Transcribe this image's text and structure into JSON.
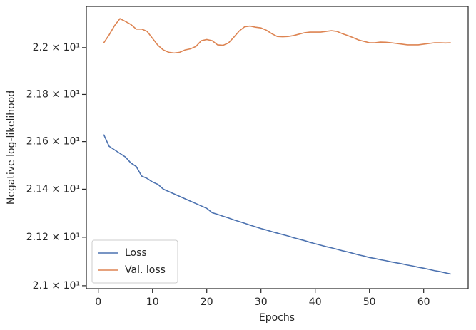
{
  "chart_data": {
    "type": "line",
    "xlabel": "Epochs",
    "ylabel": "Negative log-likelihood",
    "x": [
      1,
      2,
      3,
      4,
      5,
      6,
      7,
      8,
      9,
      10,
      11,
      12,
      13,
      14,
      15,
      16,
      17,
      18,
      19,
      20,
      21,
      22,
      23,
      24,
      25,
      26,
      27,
      28,
      29,
      30,
      31,
      32,
      33,
      34,
      35,
      36,
      37,
      38,
      39,
      40,
      41,
      42,
      43,
      44,
      45,
      46,
      47,
      48,
      49,
      50,
      51,
      52,
      53,
      54,
      55,
      56,
      57,
      58,
      59,
      60,
      61,
      62,
      63,
      64,
      65
    ],
    "series": [
      {
        "name": "Loss",
        "color": "#4c72b0",
        "values": [
          21.63,
          21.58,
          21.565,
          21.55,
          21.535,
          21.51,
          21.495,
          21.455,
          21.445,
          21.43,
          21.42,
          21.4,
          21.39,
          21.38,
          21.37,
          21.36,
          21.35,
          21.34,
          21.33,
          21.32,
          21.302,
          21.295,
          21.287,
          21.28,
          21.272,
          21.265,
          21.258,
          21.25,
          21.243,
          21.236,
          21.23,
          21.223,
          21.217,
          21.211,
          21.205,
          21.198,
          21.192,
          21.186,
          21.179,
          21.173,
          21.167,
          21.161,
          21.156,
          21.15,
          21.144,
          21.139,
          21.133,
          21.127,
          21.122,
          21.116,
          21.112,
          21.107,
          21.103,
          21.098,
          21.094,
          21.09,
          21.085,
          21.081,
          21.076,
          21.072,
          21.067,
          21.062,
          21.058,
          21.053,
          21.048
        ]
      },
      {
        "name": "Val. loss",
        "color": "#dd8452",
        "values": [
          22.02,
          22.055,
          22.095,
          22.125,
          22.113,
          22.1,
          22.08,
          22.08,
          22.07,
          22.04,
          22.01,
          21.99,
          21.98,
          21.977,
          21.98,
          21.99,
          21.995,
          22.005,
          22.03,
          22.035,
          22.03,
          22.012,
          22.01,
          22.02,
          22.045,
          22.072,
          22.09,
          22.093,
          22.088,
          22.085,
          22.075,
          22.06,
          22.048,
          22.047,
          22.048,
          22.052,
          22.058,
          22.064,
          22.067,
          22.067,
          22.067,
          22.07,
          22.073,
          22.07,
          22.06,
          22.052,
          22.043,
          22.033,
          22.027,
          22.021,
          22.021,
          22.024,
          22.023,
          22.021,
          22.018,
          22.015,
          22.012,
          22.012,
          22.012,
          22.015,
          22.018,
          22.021,
          22.021,
          22.02,
          22.021
        ]
      }
    ],
    "xlim": [
      -2.2,
      68.2
    ],
    "xticks": [
      0,
      10,
      20,
      30,
      40,
      50,
      60
    ],
    "ylim": [
      20.988,
      22.178
    ],
    "log_y": true,
    "yticks": [
      {
        "value": 21.0,
        "label": "2.1 × 10¹"
      },
      {
        "value": 21.2,
        "label": "2.12 × 10¹"
      },
      {
        "value": 21.4,
        "label": "2.14 × 10¹"
      },
      {
        "value": 21.6,
        "label": "2.16 × 10¹"
      },
      {
        "value": 21.8,
        "label": "2.18 × 10¹"
      },
      {
        "value": 22.0,
        "label": "2.2 × 10¹"
      }
    ],
    "legend": "lower left",
    "grid": false
  }
}
